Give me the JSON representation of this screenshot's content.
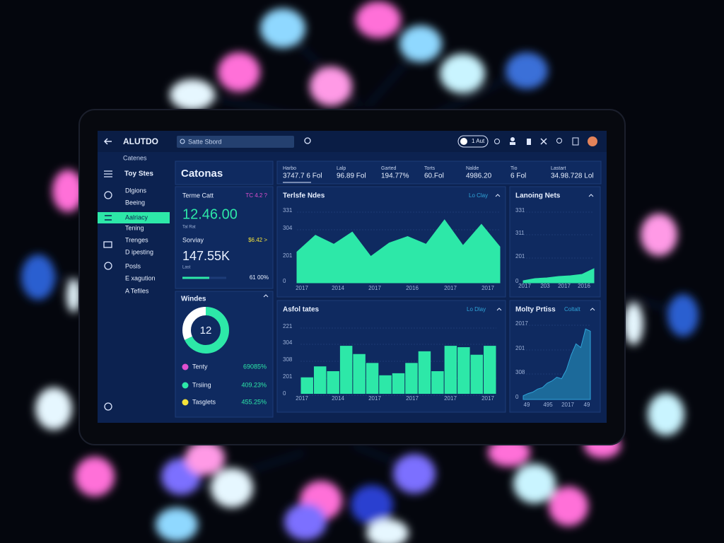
{
  "app": {
    "title": "ALUTDO",
    "search_placeholder": "Satte Sbord",
    "account": "1 Aut"
  },
  "sidebar": {
    "heading": "Catenes",
    "items": [
      "Toy Stes",
      "Dlgions",
      "Beeing",
      "Aalriacy",
      "Tening",
      "Trenges",
      "D ipesting",
      "Posls",
      "E xagution",
      "A Tefiles"
    ]
  },
  "page_title": "Catonas",
  "stats": [
    {
      "label": "Harbo",
      "value": "3747.7 6 Fol"
    },
    {
      "label": "Lalp",
      "value": "96.89 Fol"
    },
    {
      "label": "Garted",
      "value": "194.77%"
    },
    {
      "label": "Torts",
      "value": "60.Fol"
    },
    {
      "label": "Nalde",
      "value": "4986.20"
    },
    {
      "label": "Tio",
      "value": "6 Fol"
    },
    {
      "label": "Lastart",
      "value": "34.98.728 Lol"
    }
  ],
  "metrics": [
    {
      "label": "Terme Catt",
      "badge": "TC 4.2 ?",
      "value": "12.46.00",
      "sub": "Tal Rat"
    },
    {
      "label": "Sorviay",
      "badge": "$6.42 >",
      "value": "147.55K",
      "sub": "Last",
      "note": "61 00%"
    }
  ],
  "donut": {
    "title": "Windes",
    "center": "12",
    "values": [
      68,
      32
    ],
    "colors": [
      "#2de8a8",
      "#ffffff"
    ],
    "legend": [
      {
        "name": "Tenty",
        "value": "69085%",
        "color": "#e04fd0"
      },
      {
        "name": "Trsiing",
        "value": "409.23%",
        "color": "#2de8a8"
      },
      {
        "name": "Tasglets",
        "value": "455.25%",
        "color": "#f4e23a"
      }
    ]
  },
  "charts": [
    {
      "type": "area",
      "title": "Terlsfe Ndes",
      "link": "Lo Clay",
      "color": "#2de8a8",
      "ylim": [
        0,
        110
      ],
      "y_labels": [
        "331",
        "304",
        "201",
        "0"
      ],
      "x_labels": [
        "2017",
        "2014",
        "2017",
        "2016",
        "2017",
        "2017"
      ],
      "values": [
        48,
        74,
        60,
        79,
        41,
        62,
        72,
        60,
        98,
        58,
        91,
        56
      ]
    },
    {
      "type": "area",
      "title": "Lanoing Nets",
      "color": "#2de8a8",
      "ylim": [
        0,
        100
      ],
      "y_labels": [
        "331",
        "311",
        "201",
        "0"
      ],
      "x_labels": [
        "2017",
        "203",
        "2017",
        "2016"
      ],
      "values": [
        3,
        6,
        7,
        9,
        10,
        12,
        20
      ]
    },
    {
      "type": "bar",
      "title": "Asfol tates",
      "link": "Lo Dlay",
      "color": "#2de8a8",
      "ylim": [
        0,
        100
      ],
      "y_labels": [
        "221",
        "304",
        "308",
        "201",
        "0"
      ],
      "x_labels": [
        "2017",
        "2014",
        "2017",
        "2017",
        "2017",
        "2017"
      ],
      "values": [
        24,
        40,
        33,
        70,
        58,
        45,
        27,
        30,
        45,
        62,
        33,
        70,
        68,
        57,
        70
      ]
    },
    {
      "type": "area",
      "title": "Molty Prtiss",
      "link": "Coltalt",
      "color": "#1c6a9a",
      "ylim": [
        0,
        100
      ],
      "y_labels": [
        "2017",
        "201",
        "308",
        "0"
      ],
      "x_labels": [
        "49",
        "495",
        "2017",
        "49"
      ],
      "values": [
        5,
        8,
        10,
        14,
        16,
        22,
        25,
        30,
        28,
        40,
        60,
        75,
        70,
        95,
        92
      ]
    }
  ]
}
